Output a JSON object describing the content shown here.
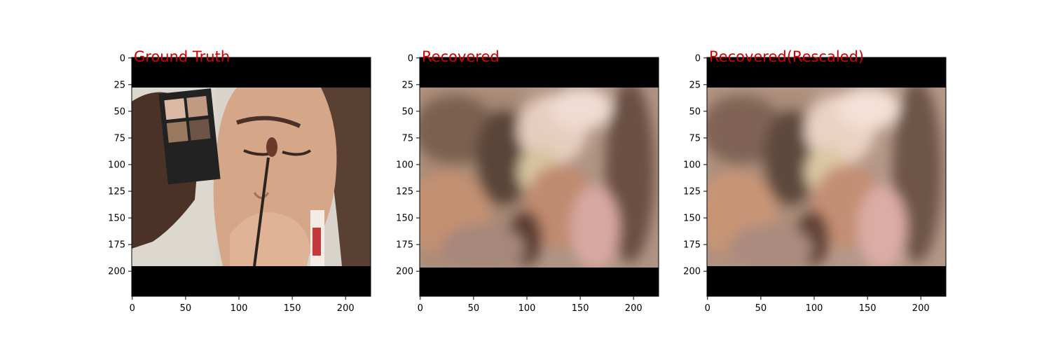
{
  "figure": {
    "panels": [
      {
        "title": "Ground Truth",
        "style": "sharp"
      },
      {
        "title": "Recovered",
        "style": "blur"
      },
      {
        "title": "Recovered(Rescaled)",
        "style": "blur"
      }
    ],
    "title_color": "#d40000",
    "x_ticks": [
      "0",
      "50",
      "100",
      "150",
      "200"
    ],
    "y_ticks": [
      "0",
      "25",
      "50",
      "75",
      "100",
      "125",
      "150",
      "175",
      "200"
    ],
    "x_tick_values": [
      0,
      50,
      100,
      150,
      200
    ],
    "y_tick_values": [
      0,
      25,
      50,
      75,
      100,
      125,
      150,
      175,
      200
    ],
    "image_extent": [
      224,
      224
    ]
  }
}
